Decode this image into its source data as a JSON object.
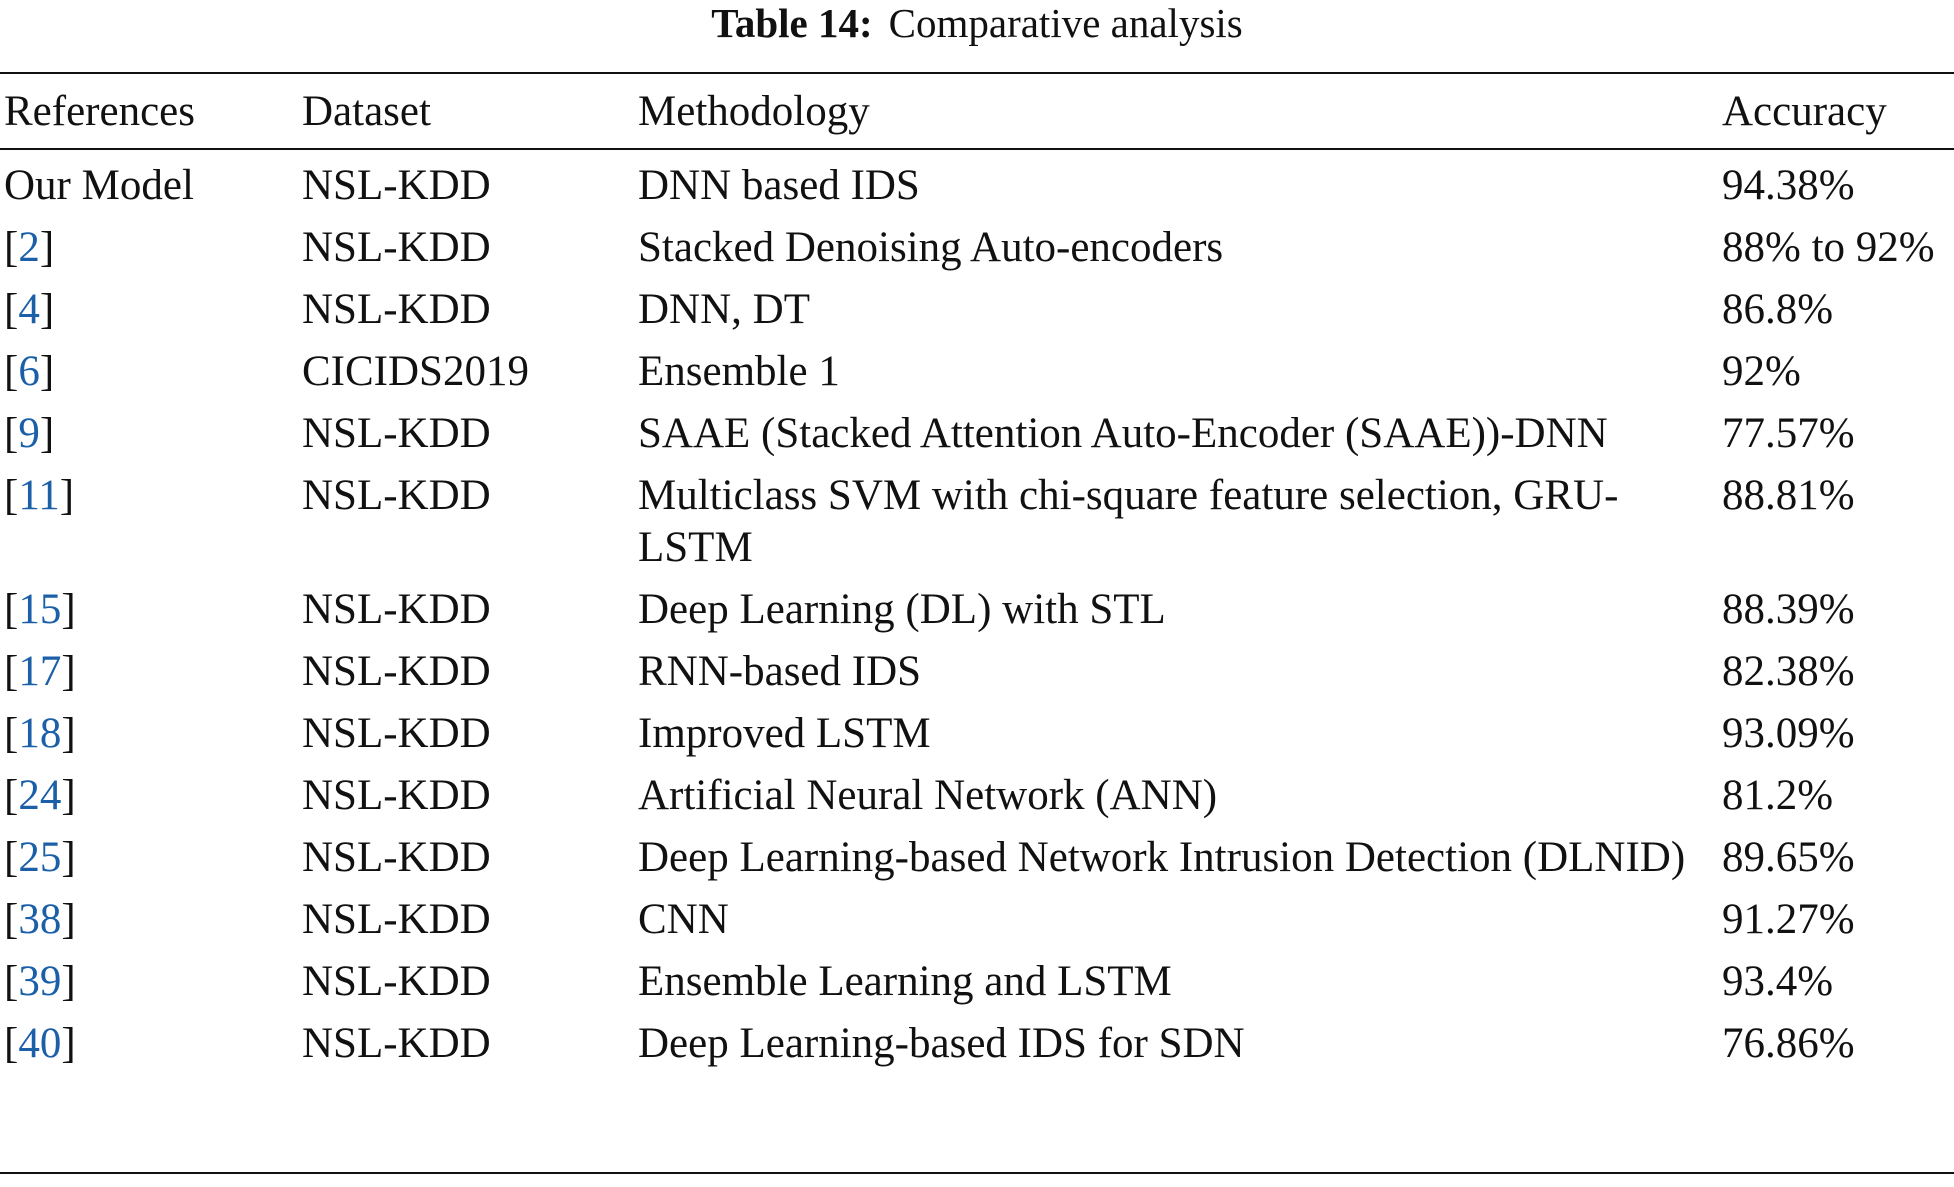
{
  "caption": {
    "label": "Table 14:",
    "title": "Comparative analysis"
  },
  "headers": {
    "references": "References",
    "dataset": "Dataset",
    "methodology": "Methodology",
    "accuracy": "Accuracy"
  },
  "colors": {
    "text": "#111111",
    "citation_link": "#1a5fa8",
    "rules": "#111111"
  },
  "rows": [
    {
      "reference": "Our Model",
      "dataset": "NSL-KDD",
      "methodology": "DNN based IDS",
      "accuracy": "94.38%"
    },
    {
      "reference": "2",
      "dataset": "NSL-KDD",
      "methodology": "Stacked Denoising Auto-encoders",
      "accuracy": "88% to 92%"
    },
    {
      "reference": "4",
      "dataset": "NSL-KDD",
      "methodology": "DNN, DT",
      "accuracy": "86.8%"
    },
    {
      "reference": "6",
      "dataset": "CICIDS2019",
      "methodology": "Ensemble 1",
      "accuracy": "92%"
    },
    {
      "reference": "9",
      "dataset": "NSL-KDD",
      "methodology": "SAAE (Stacked Attention Auto-Encoder (SAAE))-DNN",
      "accuracy": "77.57%"
    },
    {
      "reference": "11",
      "dataset": "NSL-KDD",
      "methodology": "Multiclass SVM with chi-square feature selection, GRU-LSTM",
      "accuracy": "88.81%"
    },
    {
      "reference": "15",
      "dataset": "NSL-KDD",
      "methodology": "Deep Learning (DL) with STL",
      "accuracy": "88.39%"
    },
    {
      "reference": "17",
      "dataset": "NSL-KDD",
      "methodology": "RNN-based IDS",
      "accuracy": "82.38%"
    },
    {
      "reference": "18",
      "dataset": "NSL-KDD",
      "methodology": "Improved LSTM",
      "accuracy": "93.09%"
    },
    {
      "reference": "24",
      "dataset": "NSL-KDD",
      "methodology": "Artificial Neural Network (ANN)",
      "accuracy": "81.2%"
    },
    {
      "reference": "25",
      "dataset": "NSL-KDD",
      "methodology": "Deep Learning-based Network Intrusion Detection (DLNID)",
      "accuracy": "89.65%"
    },
    {
      "reference": "38",
      "dataset": "NSL-KDD",
      "methodology": "CNN",
      "accuracy": "91.27%"
    },
    {
      "reference": "39",
      "dataset": "NSL-KDD",
      "methodology": "Ensemble Learning and LSTM",
      "accuracy": "93.4%"
    },
    {
      "reference": "40",
      "dataset": "NSL-KDD",
      "methodology": "Deep Learning-based IDS for SDN",
      "accuracy": "76.86%"
    }
  ]
}
